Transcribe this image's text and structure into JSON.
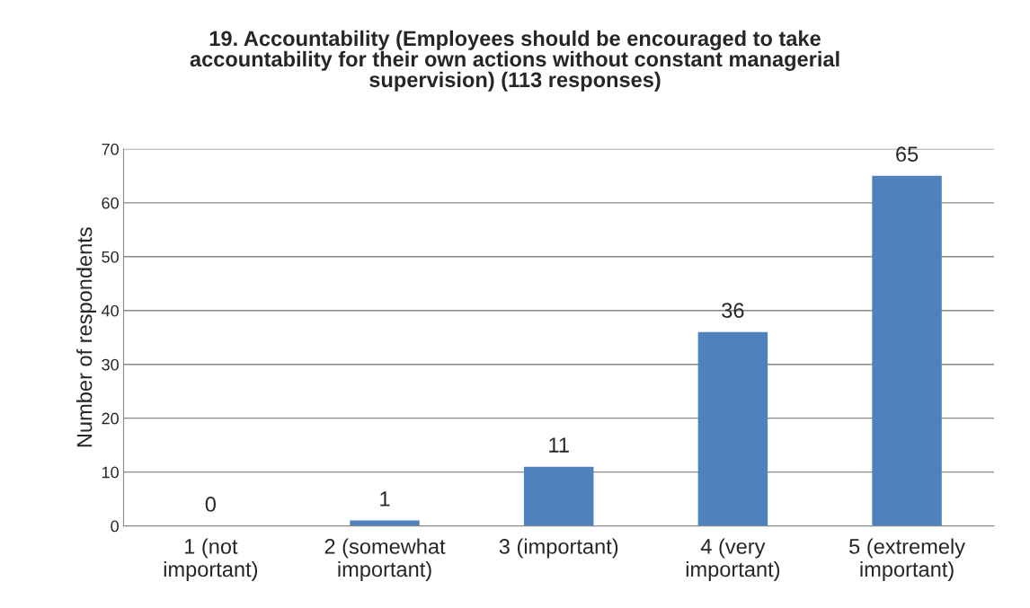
{
  "chart_data": {
    "type": "bar",
    "title": "19. Accountability (Employees should be encouraged to take\naccountability for their own actions without constant managerial\nsupervision) (113 responses)",
    "ylabel": "Number of respondents",
    "categories": [
      "1 (not\nimportant)",
      "2 (somewhat\nimportant)",
      "3 (important)",
      "4 (very\nimportant)",
      "5 (extremely\nimportant)"
    ],
    "values": [
      0,
      1,
      11,
      36,
      65
    ],
    "color": "#4f81bd",
    "ylim": [
      0,
      70
    ],
    "yticks": [
      0,
      10,
      20,
      30,
      40,
      50,
      60,
      70
    ],
    "grid": "y",
    "data_labels": true,
    "legend": false
  }
}
